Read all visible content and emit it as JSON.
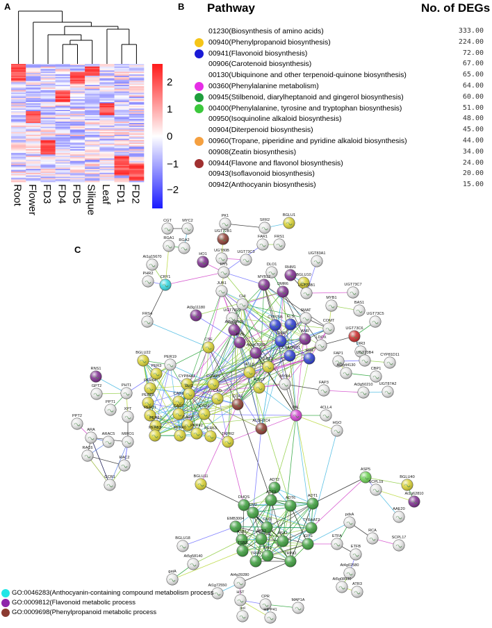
{
  "panel_labels": {
    "a": "A",
    "b": "B",
    "c": "C"
  },
  "heatmap": {
    "columns": [
      "Root",
      "Flower",
      "FD3",
      "FD4",
      "FD5",
      "Silique",
      "Leaf",
      "FD1",
      "FD2"
    ],
    "colorbar_ticks": [
      "2",
      "1",
      "0",
      "−1",
      "−2"
    ],
    "colors": {
      "high": "#ff1a1a",
      "mid": "#ffffff",
      "low": "#1a1aff"
    }
  },
  "pathway_table": {
    "header_pathway": "Pathway",
    "header_count": "No. of DEGs",
    "rows": [
      {
        "name": "01230(Biosynthesis of amino acids)",
        "count": "333.00",
        "dot": ""
      },
      {
        "name": "00940(Phenylpropanoid biosynthesis)",
        "count": "224.00",
        "dot": "#f5c518"
      },
      {
        "name": "00941(Flavonoid biosynthesis)",
        "count": "72.00",
        "dot": "#1a1ad6"
      },
      {
        "name": "00906(Carotenoid biosynthesis)",
        "count": "67.00",
        "dot": ""
      },
      {
        "name": "00130(Ubiquinone and other terpenoid-quinone biosynthesis)",
        "count": "65.00",
        "dot": ""
      },
      {
        "name": "00360(Phenylalanine metabolism)",
        "count": "64.00",
        "dot": "#e62ee6"
      },
      {
        "name": "00945(Stilbenoid, diarylheptanoid and gingerol biosynthesis)",
        "count": "60.00",
        "dot": "#1f9e3c"
      },
      {
        "name": "00400(Phenylalanine, tyrosine and tryptophan biosynthesis)",
        "count": "51.00",
        "dot": "#3cc83c"
      },
      {
        "name": "00950(Isoquinoline alkaloid biosynthesis)",
        "count": "48.00",
        "dot": ""
      },
      {
        "name": "00904(Diterpenoid biosynthesis)",
        "count": "45.00",
        "dot": ""
      },
      {
        "name": "00960(Tropane, piperidine and pyridine alkaloid biosynthesis)",
        "count": "44.00",
        "dot": "#f5a040"
      },
      {
        "name": "00908(Zeatin biosynthesis)",
        "count": "34.00",
        "dot": ""
      },
      {
        "name": "00944(Flavone and flavonol biosynthesis)",
        "count": "24.00",
        "dot": "#a03030"
      },
      {
        "name": "00943(Isoflavonoid biosynthesis)",
        "count": "20.00",
        "dot": ""
      },
      {
        "name": "00942(Anthocyanin biosynthesis)",
        "count": "15.00",
        "dot": ""
      }
    ]
  },
  "go_legend": [
    {
      "text": "GO:0046283(Anthocyanin-containing compound metabolism process",
      "color": "#22e6e6"
    },
    {
      "text": "GO:0009812(Flavonoid metabolic process",
      "color": "#8e24aa"
    },
    {
      "text": "GO:0009698(Phenylpropanoid metabolic process",
      "color": "#8b3a30"
    }
  ],
  "node_colors": {
    "white": "#e6e6e6",
    "yellow": "#d8d030",
    "green": "#3a9e3a",
    "purple": "#7b2a8c",
    "brown": "#8b3a30",
    "blue": "#2a3ad0",
    "cyan": "#33d6e0",
    "magenta": "#d040d0",
    "red": "#c82828",
    "orange": "#f0a040",
    "lime": "#6ad050"
  },
  "network": {
    "nodes": [
      {
        "label": "CGT",
        "colors": [
          "white"
        ]
      },
      {
        "label": "MYC2",
        "colors": [
          "white"
        ]
      },
      {
        "label": "PK1",
        "colors": [
          "white"
        ]
      },
      {
        "label": "SFR2",
        "colors": [
          "white"
        ]
      },
      {
        "label": "BGLU1",
        "colors": [
          "yellow"
        ]
      },
      {
        "label": "RGA1",
        "colors": [
          "white"
        ]
      },
      {
        "label": "RGA2",
        "colors": [
          "white"
        ]
      },
      {
        "label": "UGT72B1",
        "colors": [
          "brown"
        ]
      },
      {
        "label": "FAR1",
        "colors": [
          "white"
        ]
      },
      {
        "label": "FRS1",
        "colors": [
          "white"
        ]
      },
      {
        "label": "UGT80B",
        "colors": [
          "white"
        ]
      },
      {
        "label": "HO1",
        "colors": [
          "purple"
        ]
      },
      {
        "label": "UGT73C3",
        "colors": [
          "white"
        ]
      },
      {
        "label": "UGT83A1",
        "colors": [
          "white"
        ]
      },
      {
        "label": "At1g15670",
        "colors": [
          "white"
        ]
      },
      {
        "label": "HY5",
        "colors": [
          "white"
        ]
      },
      {
        "label": "DLO1",
        "colors": [
          "white"
        ]
      },
      {
        "label": "RHM1",
        "colors": [
          "purple"
        ]
      },
      {
        "label": "BGLU10",
        "colors": [
          "yellow"
        ]
      },
      {
        "label": "PHR2",
        "colors": [
          "white"
        ]
      },
      {
        "label": "CRY1",
        "colors": [
          "cyan"
        ]
      },
      {
        "label": "JUB1",
        "colors": [
          "white"
        ]
      },
      {
        "label": "MYB12",
        "colors": [
          "purple"
        ]
      },
      {
        "label": "DMR6",
        "colors": [
          "purple"
        ]
      },
      {
        "label": "UGT73B1",
        "colors": [
          "white"
        ]
      },
      {
        "label": "UGT73C7",
        "colors": [
          "white"
        ]
      },
      {
        "label": "CHI",
        "colors": [
          "white"
        ]
      },
      {
        "label": "MYB1",
        "colors": [
          "white"
        ]
      },
      {
        "label": "BAS1",
        "colors": [
          "white"
        ]
      },
      {
        "label": "At3g11180",
        "colors": [
          "purple"
        ]
      },
      {
        "label": "UGT73D1",
        "colors": [
          "white"
        ]
      },
      {
        "label": "SMAT",
        "colors": [
          "white"
        ]
      },
      {
        "label": "UGT73C5",
        "colors": [
          "white"
        ]
      },
      {
        "label": "At5g05600",
        "colors": [
          "purple"
        ]
      },
      {
        "label": "CYP75B",
        "colors": [
          "blue"
        ]
      },
      {
        "label": "FLS",
        "colors": [
          "blue"
        ]
      },
      {
        "label": "COMT",
        "colors": [
          "white"
        ]
      },
      {
        "label": "UGT73C6",
        "colors": [
          "red"
        ]
      },
      {
        "label": "FRS4",
        "colors": [
          "white"
        ]
      },
      {
        "label": "DIR3",
        "colors": [
          "white"
        ]
      },
      {
        "label": "CSE",
        "colors": [
          "yellow"
        ]
      },
      {
        "label": "ANS",
        "colors": [
          "purple"
        ]
      },
      {
        "label": "CHS",
        "colors": [
          "blue"
        ]
      },
      {
        "label": "ANR",
        "colors": [
          "purple"
        ]
      },
      {
        "label": "LDOX",
        "colors": [
          "white"
        ]
      },
      {
        "label": "At1g67980",
        "colors": [
          "purple"
        ]
      },
      {
        "label": "CCoAOMT1",
        "colors": [
          "blue"
        ]
      },
      {
        "label": "FAP1",
        "colors": [
          "white"
        ]
      },
      {
        "label": "UGT73B4",
        "colors": [
          "white"
        ]
      },
      {
        "label": "CYP81D11",
        "colors": [
          "white"
        ]
      },
      {
        "label": "BGLU22",
        "colors": [
          "yellow"
        ]
      },
      {
        "label": "PER19",
        "colors": [
          "white"
        ]
      },
      {
        "label": "FCL2",
        "colors": [
          "yellow"
        ]
      },
      {
        "label": "F5H",
        "colors": [
          "blue"
        ]
      },
      {
        "label": "At2g44130",
        "colors": [
          "white"
        ]
      },
      {
        "label": "CBP1",
        "colors": [
          "white"
        ]
      },
      {
        "label": "PER3",
        "colors": [
          "yellow"
        ]
      },
      {
        "label": "4CL8",
        "colors": [
          "yellow"
        ]
      },
      {
        "label": "MYB4",
        "colors": [
          "white"
        ]
      },
      {
        "label": "FAP3",
        "colors": [
          "white"
        ]
      },
      {
        "label": "At3g50210",
        "colors": [
          "white"
        ]
      },
      {
        "label": "UGT87A2",
        "colors": [
          "white"
        ]
      },
      {
        "label": "RNS1",
        "colors": [
          "purple"
        ]
      },
      {
        "label": "PER64",
        "colors": [
          "yellow"
        ]
      },
      {
        "label": "CYP84A1",
        "colors": [
          "yellow"
        ]
      },
      {
        "label": "ELI3",
        "colors": [
          "yellow"
        ]
      },
      {
        "label": "COMT1",
        "colors": [
          "yellow"
        ]
      },
      {
        "label": "4CLL7",
        "colors": [
          "yellow"
        ]
      },
      {
        "label": "PHT1",
        "colors": [
          "white"
        ]
      },
      {
        "label": "GPT2",
        "colors": [
          "white"
        ]
      },
      {
        "label": "PER20",
        "colors": [
          "yellow"
        ]
      },
      {
        "label": "CAD1",
        "colors": [
          "yellow"
        ]
      },
      {
        "label": "CAD",
        "colors": [
          "yellow"
        ]
      },
      {
        "label": "CCR1",
        "colors": [
          "brown"
        ]
      },
      {
        "label": "PPT1",
        "colors": [
          "white"
        ]
      },
      {
        "label": "XPT",
        "colors": [
          "white"
        ]
      },
      {
        "label": "PER31",
        "colors": [
          "yellow"
        ]
      },
      {
        "label": "CAD2",
        "colors": [
          "yellow"
        ]
      },
      {
        "label": "CAD6",
        "colors": [
          "yellow"
        ]
      },
      {
        "label": "PAL",
        "colors": [
          "magenta"
        ]
      },
      {
        "label": "4CLL4",
        "colors": [
          "white"
        ]
      },
      {
        "label": "PPT2",
        "colors": [
          "white"
        ]
      },
      {
        "label": "PER17",
        "colors": [
          "yellow"
        ]
      },
      {
        "label": "CAD3",
        "colors": [
          "yellow"
        ]
      },
      {
        "label": "ALDH2C4",
        "colors": [
          "brown"
        ]
      },
      {
        "label": "HGO",
        "colors": [
          "white"
        ]
      },
      {
        "label": "ARA",
        "colors": [
          "white"
        ]
      },
      {
        "label": "ARAC5",
        "colors": [
          "white"
        ]
      },
      {
        "label": "PER53",
        "colors": [
          "yellow"
        ]
      },
      {
        "label": "PER40",
        "colors": [
          "yellow"
        ]
      },
      {
        "label": "PER42",
        "colors": [
          "yellow"
        ]
      },
      {
        "label": "PER63",
        "colors": [
          "yellow"
        ]
      },
      {
        "label": "TKPR2",
        "colors": [
          "yellow"
        ]
      },
      {
        "label": "MIRO1",
        "colors": [
          "white"
        ]
      },
      {
        "label": "RAC6",
        "colors": [
          "white"
        ]
      },
      {
        "label": "RAC2",
        "colors": [
          "white"
        ]
      },
      {
        "label": "GCR1",
        "colors": [
          "white"
        ]
      },
      {
        "label": "ASP5",
        "colors": [
          "lime"
        ]
      },
      {
        "label": "SCPL19",
        "colors": [
          "white"
        ]
      },
      {
        "label": "BGLU40",
        "colors": [
          "yellow"
        ]
      },
      {
        "label": "At1g62810",
        "colors": [
          "purple"
        ]
      },
      {
        "label": "BGLU11",
        "colors": [
          "yellow"
        ]
      },
      {
        "label": "ADT2",
        "colors": [
          "green"
        ]
      },
      {
        "label": "ADT3",
        "colors": [
          "green"
        ]
      },
      {
        "label": "DHQS",
        "colors": [
          "green"
        ]
      },
      {
        "label": "ADT6",
        "colors": [
          "green"
        ]
      },
      {
        "label": "ADT1",
        "colors": [
          "green"
        ]
      },
      {
        "label": "CM2",
        "colors": [
          "green"
        ]
      },
      {
        "label": "EMB3004",
        "colors": [
          "green"
        ]
      },
      {
        "label": "CM3",
        "colors": [
          "green"
        ]
      },
      {
        "label": "TYRAAT2",
        "colors": [
          "green"
        ]
      },
      {
        "label": "pdxA",
        "colors": [
          "white"
        ]
      },
      {
        "label": "AAE20",
        "colors": [
          "white"
        ]
      },
      {
        "label": "RCA",
        "colors": [
          "white"
        ]
      },
      {
        "label": "SCPL17",
        "colors": [
          "white"
        ]
      },
      {
        "label": "ASB1",
        "colors": [
          "green"
        ]
      },
      {
        "label": "ASB2",
        "colors": [
          "green"
        ]
      },
      {
        "label": "ASA1",
        "colors": [
          "green"
        ]
      },
      {
        "label": "IGPS",
        "colors": [
          "green"
        ]
      },
      {
        "label": "ETFA",
        "colors": [
          "white"
        ]
      },
      {
        "label": "BGLU18",
        "colors": [
          "white"
        ]
      },
      {
        "label": "TSB2",
        "colors": [
          "green"
        ]
      },
      {
        "label": "PAI1",
        "colors": [
          "green"
        ]
      },
      {
        "label": "TRP4",
        "colors": [
          "green"
        ]
      },
      {
        "label": "TRPA1",
        "colors": [
          "green"
        ]
      },
      {
        "label": "ETFB",
        "colors": [
          "white"
        ]
      },
      {
        "label": "At5g58140",
        "colors": [
          "white"
        ]
      },
      {
        "label": "At4g02580",
        "colors": [
          "white"
        ]
      },
      {
        "label": "ATR3",
        "colors": [
          "white"
        ]
      },
      {
        "label": "gatA",
        "colors": [
          "white"
        ]
      },
      {
        "label": "At5g08530",
        "colors": [
          "white"
        ]
      },
      {
        "label": "At4g39280",
        "colors": [
          "white"
        ]
      },
      {
        "label": "At1g72550",
        "colors": [
          "white"
        ]
      },
      {
        "label": "HST",
        "colors": [
          "white"
        ]
      },
      {
        "label": "CPR",
        "colors": [
          "white"
        ]
      },
      {
        "label": "MAP1A",
        "colors": [
          "white"
        ]
      },
      {
        "label": "pol",
        "colors": [
          "white"
        ]
      },
      {
        "label": "HIPP41",
        "colors": [
          "white"
        ]
      }
    ]
  }
}
